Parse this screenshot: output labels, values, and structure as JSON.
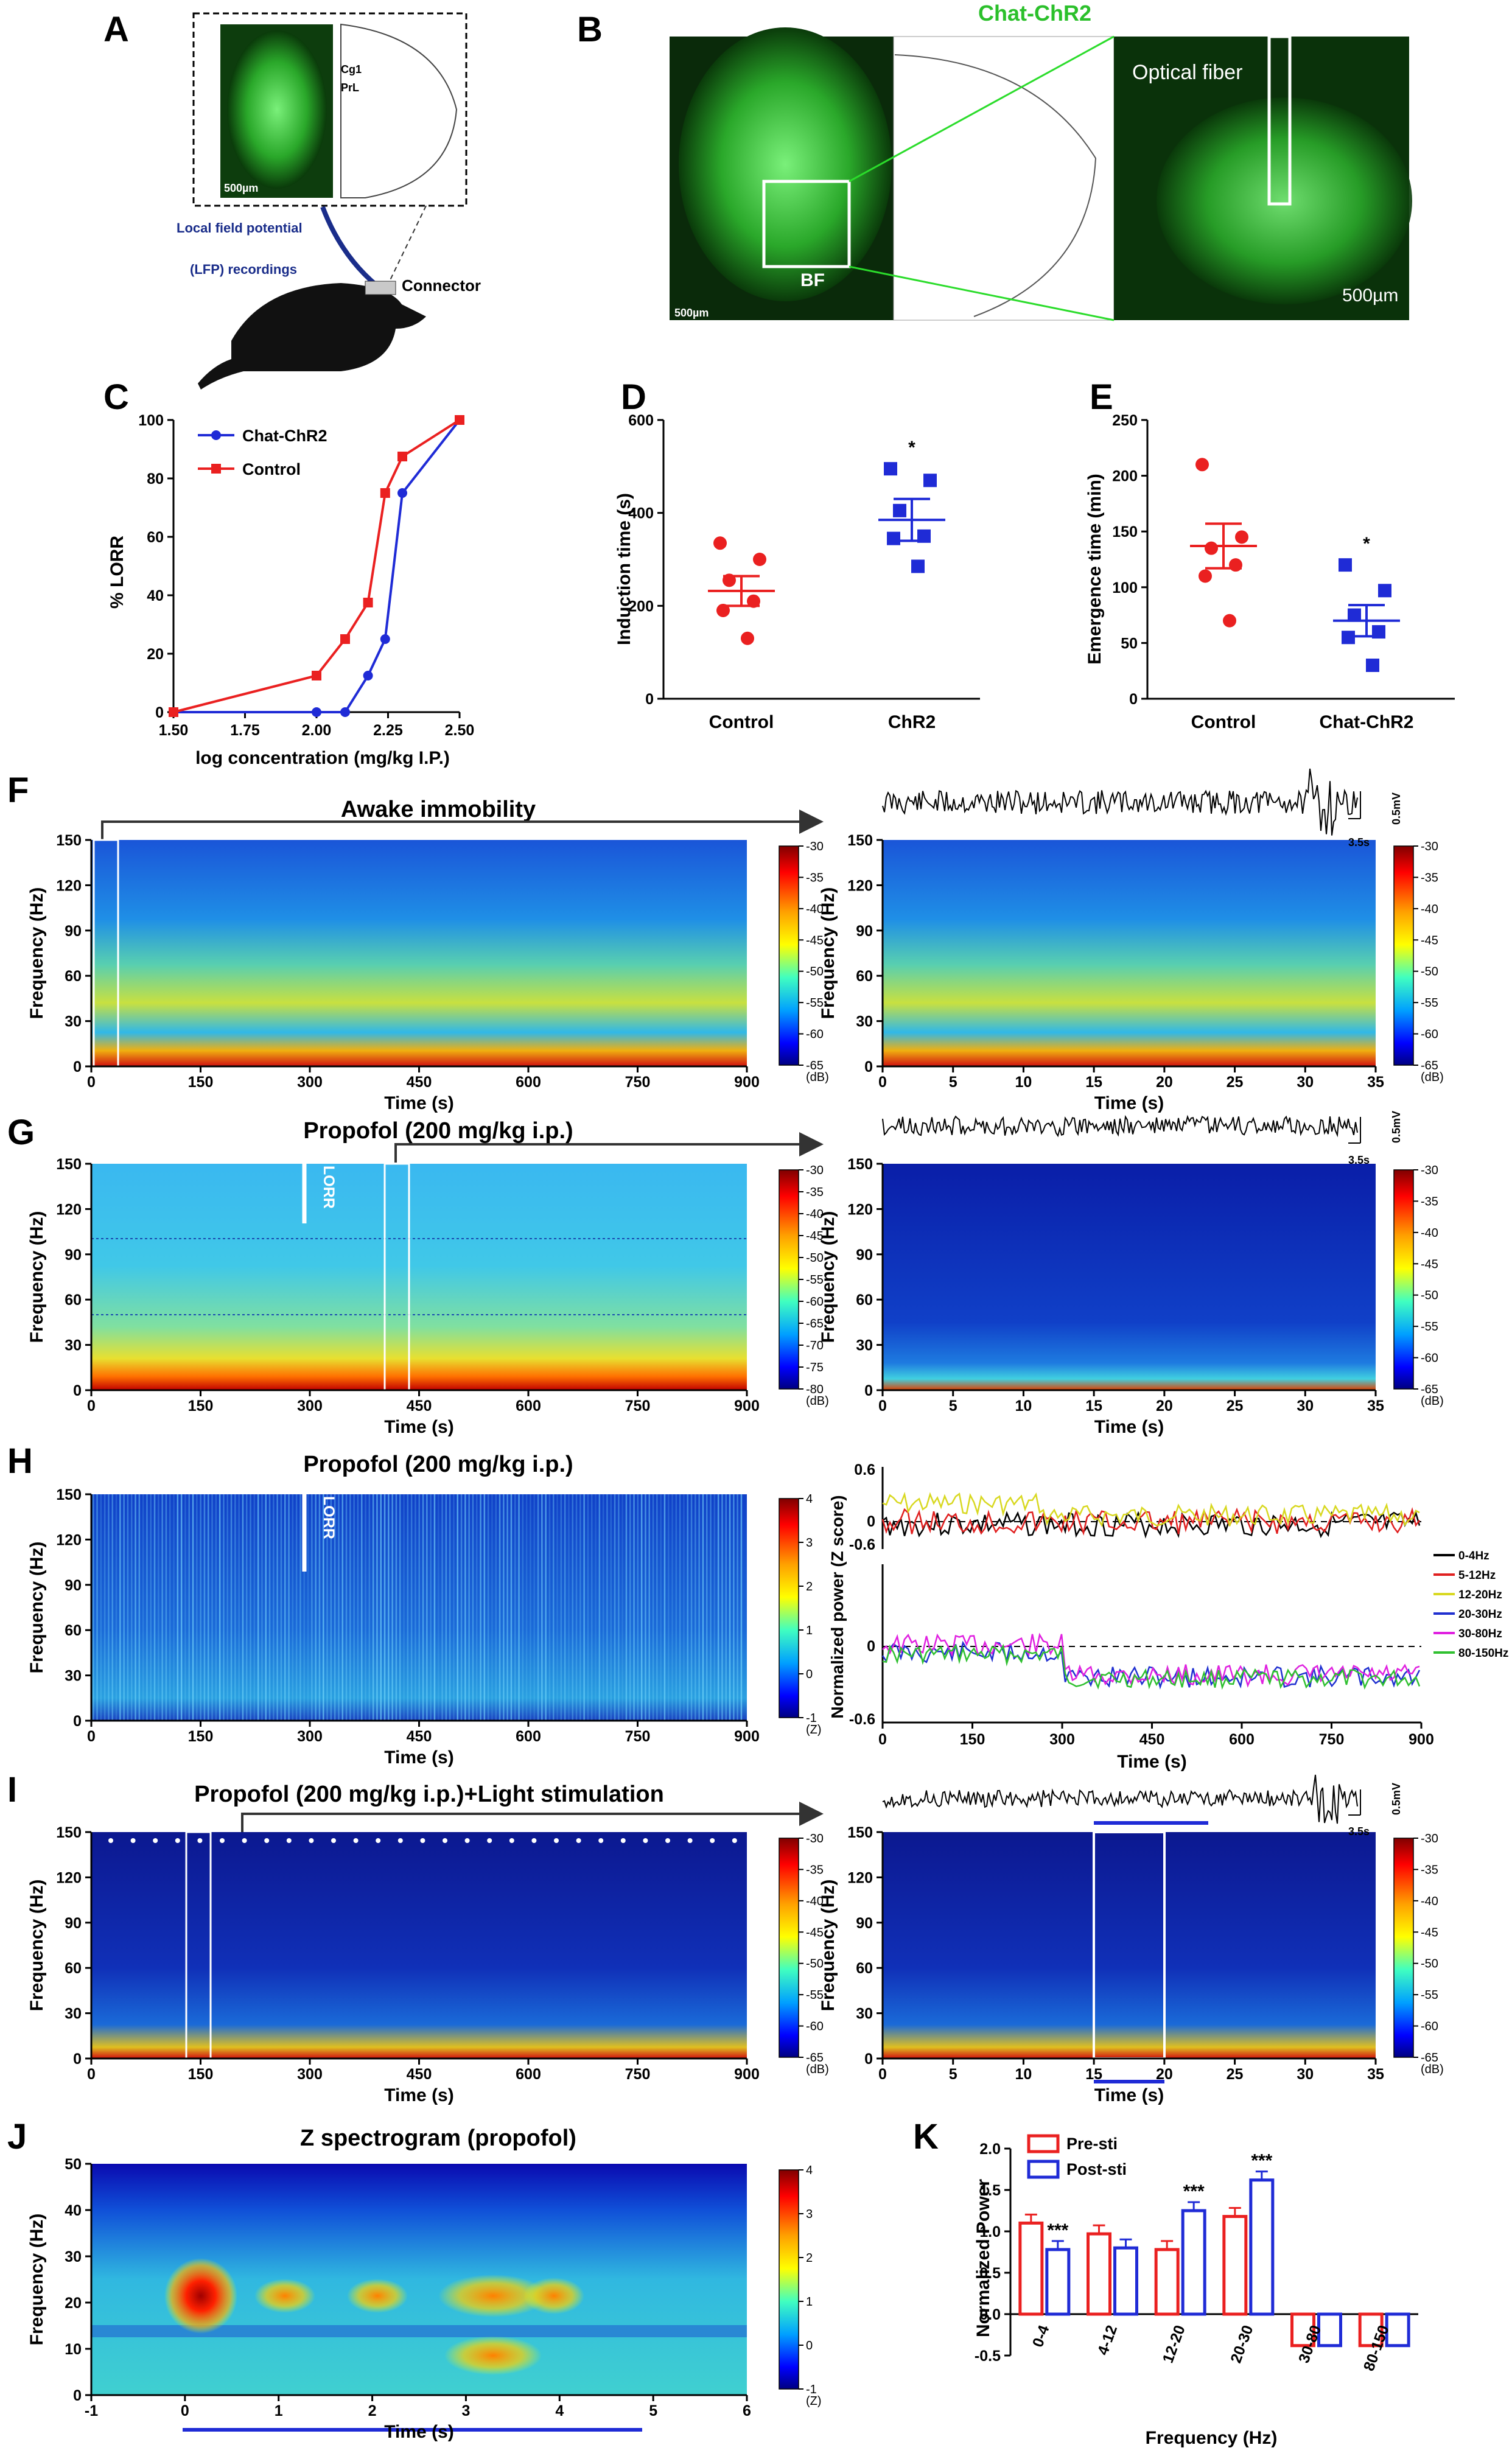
{
  "colors": {
    "red": "#ea2020",
    "blue": "#1f2bd6",
    "green": "#2bdc2b",
    "navy": "#1a2d8a"
  },
  "panel_A": {
    "label": "A",
    "lfp_line1": "Local field potential",
    "lfp_line2": "(LFP) recordings",
    "connector": "Connector",
    "scale": "500µm",
    "atlas_cg1": "Cg1",
    "atlas_prl": "PrL"
  },
  "panel_B": {
    "label": "B",
    "title": "Chat-ChR2",
    "bf": "BF",
    "scale_left": "500µm",
    "scale_right": "500µm",
    "optical_fiber": "Optical fiber"
  },
  "panels_F_K": {
    "F": "F",
    "G": "G",
    "H": "H",
    "I": "I",
    "J": "J"
  },
  "shared": {
    "freq_hz": "Frequency (Hz)",
    "time_s": "Time (s)",
    "db": "(dB)",
    "z": "(Z)",
    "mv": "0.5mV",
    "s35": "3.5s",
    "lorr": "LORR",
    "t900": [
      "0",
      "150",
      "300",
      "450",
      "600",
      "750",
      "900"
    ],
    "t35": [
      "0",
      "5",
      "10",
      "15",
      "20",
      "25",
      "30",
      "35"
    ],
    "f150": [
      "0",
      "30",
      "60",
      "90",
      "120",
      "150"
    ],
    "cb_db": [
      "-30",
      "-35",
      "-40",
      "-45",
      "-50",
      "-55",
      "-60",
      "-65"
    ],
    "cb_db_g": [
      "-30",
      "-35",
      "-40",
      "-45",
      "-50",
      "-55",
      "-60",
      "-65",
      "-70",
      "-75",
      "-80"
    ],
    "cb_z": [
      "4",
      "3",
      "2",
      "1",
      "0",
      "-1"
    ]
  },
  "titles": {
    "F": "Awake immobility",
    "G": "Propofol (200 mg/kg i.p.)",
    "H": "Propofol (200 mg/kg i.p.)",
    "I": "Propofol (200 mg/kg i.p.)+Light stimulation",
    "J": "Z spectrogram (propofol)"
  },
  "H_lines": {
    "ylabel": "Normalized power (Z score)",
    "top_ticks": [
      "0.6",
      "0",
      "-0.6"
    ],
    "bottom_ticks": [
      "0",
      "-0.6"
    ],
    "legend": [
      "0-4Hz",
      "5-12Hz",
      "12-20Hz",
      "20-30Hz",
      "30-80Hz",
      "80-150Hz"
    ],
    "legend_colors": [
      "#000000",
      "#e02020",
      "#d8d820",
      "#2030d0",
      "#e020e0",
      "#30c030"
    ]
  },
  "J_axes": {
    "freq_ticks": [
      "0",
      "10",
      "20",
      "30",
      "40",
      "50"
    ],
    "time_ticks": [
      "-1",
      "0",
      "1",
      "2",
      "3",
      "4",
      "5",
      "6"
    ],
    "cb": [
      "4",
      "3",
      "2",
      "1",
      "0",
      "-1"
    ]
  },
  "chart_data": [
    {
      "panel": "C",
      "type": "line",
      "ylabel": "% LORR",
      "xlabel": "log concentration (mg/kg I.P.)",
      "xlim": [
        1.5,
        2.5
      ],
      "ylim": [
        0,
        100
      ],
      "xticks": [
        "1.50",
        "1.75",
        "2.00",
        "2.25",
        "2.50"
      ],
      "yticks": [
        "0",
        "20",
        "40",
        "60",
        "80",
        "100"
      ],
      "series": [
        {
          "name": "Chat-ChR2",
          "color": "#1f2bd6",
          "marker": "circle",
          "x": [
            1.5,
            2.0,
            2.1,
            2.18,
            2.24,
            2.3,
            2.5
          ],
          "y": [
            0,
            0,
            0,
            12.5,
            25,
            75,
            100
          ]
        },
        {
          "name": "Control",
          "color": "#ea2020",
          "marker": "square",
          "x": [
            1.5,
            2.0,
            2.1,
            2.18,
            2.24,
            2.3,
            2.5
          ],
          "y": [
            0,
            12.5,
            25,
            37.5,
            75,
            87.5,
            100
          ]
        }
      ]
    },
    {
      "panel": "D",
      "type": "scatter",
      "ylabel": "Induction time (s)",
      "ylim": [
        0,
        600
      ],
      "yticks": [
        "0",
        "200",
        "400",
        "600"
      ],
      "categories": [
        "Control",
        "ChR2"
      ],
      "significance": "*",
      "groups": [
        {
          "name": "Control",
          "color": "#ea2020",
          "marker": "circle",
          "points": [
            335,
            300,
            255,
            210,
            190,
            130
          ],
          "mean": 232,
          "sem": 32
        },
        {
          "name": "ChR2",
          "color": "#1f2bd6",
          "marker": "square",
          "points": [
            495,
            470,
            405,
            350,
            345,
            285
          ],
          "mean": 385,
          "sem": 45
        }
      ]
    },
    {
      "panel": "E",
      "type": "scatter",
      "ylabel": "Emergence time (min)",
      "ylim": [
        0,
        250
      ],
      "yticks": [
        "0",
        "50",
        "100",
        "150",
        "200",
        "250"
      ],
      "categories": [
        "Control",
        "Chat-ChR2"
      ],
      "significance": "*",
      "groups": [
        {
          "name": "Control",
          "color": "#ea2020",
          "marker": "circle",
          "points": [
            210,
            145,
            135,
            120,
            110,
            70
          ],
          "mean": 137,
          "sem": 20
        },
        {
          "name": "Chat-ChR2",
          "color": "#1f2bd6",
          "marker": "square",
          "points": [
            120,
            97,
            75,
            60,
            55,
            30
          ],
          "mean": 70,
          "sem": 14
        }
      ]
    },
    {
      "panel": "K",
      "type": "bar",
      "ylabel": "Normalized Power",
      "xlabel": "Frequency (Hz)",
      "ylim": [
        -0.5,
        2.0
      ],
      "yticks": [
        "-0.5",
        "0.0",
        "0.5",
        "1.0",
        "1.5",
        "2.0"
      ],
      "categories": [
        "0-4",
        "4-12",
        "12-20",
        "20-30",
        "30-80",
        "80-150"
      ],
      "series": [
        {
          "name": "Pre-sti",
          "color": "#ea2020",
          "values": [
            1.1,
            0.97,
            0.78,
            1.18,
            -0.38,
            -0.38
          ]
        },
        {
          "name": "Post-sti",
          "color": "#1f2bd6",
          "values": [
            0.78,
            0.8,
            1.25,
            1.62,
            -0.38,
            -0.38
          ]
        }
      ],
      "significance": [
        "***",
        "",
        "***",
        "***",
        "",
        ""
      ]
    }
  ]
}
